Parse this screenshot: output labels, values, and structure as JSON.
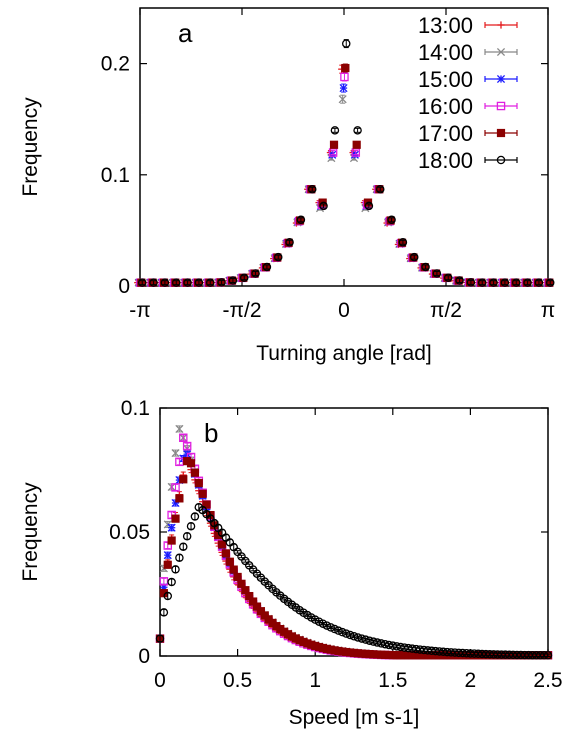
{
  "chart_data": [
    {
      "type": "scatter",
      "panel_label": "a",
      "xlabel": "Turning angle [rad]",
      "ylabel": "Frequency",
      "xlim": [
        -3.1416,
        3.1416
      ],
      "ylim": [
        0,
        0.25
      ],
      "x_ticks": [
        {
          "value": -3.1416,
          "label": "-π"
        },
        {
          "value": -1.5708,
          "label": "-π/2"
        },
        {
          "value": 0,
          "label": "0"
        },
        {
          "value": 1.5708,
          "label": "π/2"
        },
        {
          "value": 3.1416,
          "label": "π"
        }
      ],
      "y_ticks": [
        {
          "value": 0,
          "label": "0"
        },
        {
          "value": 0.1,
          "label": "0.1"
        },
        {
          "value": 0.2,
          "label": "0.2"
        }
      ],
      "legend_position": "top-right",
      "series": [
        {
          "name": "13:00",
          "color": "#e41a1c",
          "marker": "plus",
          "offset": 0,
          "peak": 0.195,
          "neighbors": [
            0.12,
            0.075
          ]
        },
        {
          "name": "14:00",
          "color": "#888888",
          "marker": "cross",
          "offset": 0,
          "peak": 0.168,
          "neighbors": [
            0.115,
            0.07
          ]
        },
        {
          "name": "15:00",
          "color": "#1a1aff",
          "marker": "star",
          "offset": 0,
          "peak": 0.178,
          "neighbors": [
            0.118,
            0.072
          ]
        },
        {
          "name": "16:00",
          "color": "#e020e0",
          "marker": "open-square",
          "offset": 0,
          "peak": 0.188,
          "neighbors": [
            0.12,
            0.073
          ]
        },
        {
          "name": "17:00",
          "color": "#8b0000",
          "marker": "filled-square",
          "offset": 0,
          "peak": 0.196,
          "neighbors": [
            0.127,
            0.075
          ]
        },
        {
          "name": "18:00",
          "color": "#000000",
          "marker": "open-circle",
          "offset": 0,
          "peak": 0.218,
          "neighbors": [
            0.14,
            0.072
          ]
        }
      ]
    },
    {
      "type": "scatter",
      "panel_label": "b",
      "xlabel": "Speed [m s-1]",
      "ylabel": "Frequency",
      "xlim": [
        0,
        2.5
      ],
      "ylim": [
        0,
        0.1
      ],
      "x_ticks": [
        {
          "value": 0,
          "label": "0"
        },
        {
          "value": 0.5,
          "label": "0.5"
        },
        {
          "value": 1,
          "label": "1"
        },
        {
          "value": 1.5,
          "label": "1.5"
        },
        {
          "value": 2,
          "label": "2"
        },
        {
          "value": 2.5,
          "label": "2.5"
        }
      ],
      "y_ticks": [
        {
          "value": 0,
          "label": "0"
        },
        {
          "value": 0.05,
          "label": "0.05"
        },
        {
          "value": 0.1,
          "label": "0.1"
        }
      ],
      "series": [
        {
          "name": "13:00",
          "color": "#e41a1c",
          "marker": "plus",
          "peak_x": 0.17,
          "peak_y": 0.079,
          "tail": 0.55
        },
        {
          "name": "14:00",
          "color": "#888888",
          "marker": "cross",
          "peak_x": 0.12,
          "peak_y": 0.092,
          "tail": 0.6
        },
        {
          "name": "15:00",
          "color": "#1a1aff",
          "marker": "star",
          "peak_x": 0.16,
          "peak_y": 0.083,
          "tail": 0.58
        },
        {
          "name": "16:00",
          "color": "#e020e0",
          "marker": "open-square",
          "peak_x": 0.15,
          "peak_y": 0.088,
          "tail": 0.56
        },
        {
          "name": "17:00",
          "color": "#8b0000",
          "marker": "filled-square",
          "peak_x": 0.18,
          "peak_y": 0.08,
          "tail": 0.57
        },
        {
          "name": "18:00",
          "color": "#000000",
          "marker": "open-circle",
          "peak_x": 0.25,
          "peak_y": 0.06,
          "tail": 0.95
        }
      ]
    }
  ]
}
